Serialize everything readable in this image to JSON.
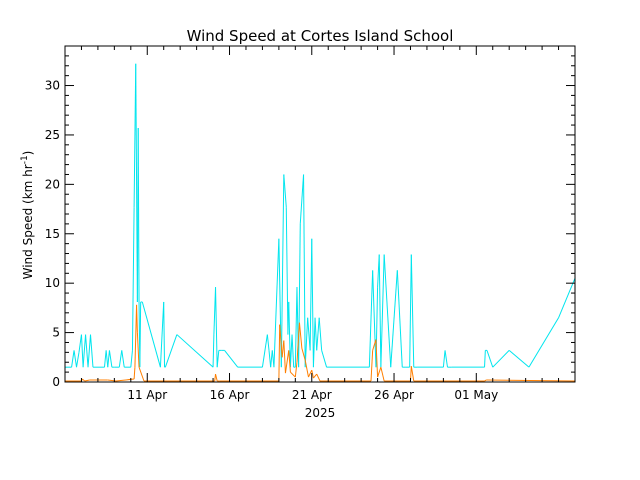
{
  "chart_data": {
    "type": "line",
    "title": "Wind Speed at Cortes Island School",
    "ylabel_main": "Wind Speed (km hr",
    "ylabel_sup": "-1",
    "ylabel_close": ")",
    "year_label": "2025",
    "xlim": [
      0,
      31
    ],
    "ylim": [
      0,
      34
    ],
    "yticks": [
      0,
      5,
      10,
      15,
      20,
      25,
      30
    ],
    "xticks": [
      {
        "x": 5,
        "label": "11 Apr"
      },
      {
        "x": 10,
        "label": "16 Apr"
      },
      {
        "x": 15,
        "label": "21 Apr"
      },
      {
        "x": 20,
        "label": "26 Apr"
      },
      {
        "x": 25,
        "label": "01 May"
      }
    ],
    "colors": {
      "max": "#00e5ee",
      "avg": "#ff7f00",
      "axis": "#000000"
    },
    "series": [
      {
        "key": "max",
        "x": [
          0,
          0.4,
          0.55,
          0.7,
          0.85,
          1.0,
          1.1,
          1.25,
          1.4,
          1.55,
          1.7,
          2.4,
          2.5,
          2.6,
          2.7,
          2.85,
          3.0,
          3.1,
          3.3,
          3.45,
          3.6,
          3.8,
          4.0,
          4.1,
          4.2,
          4.3,
          4.4,
          4.45,
          4.5,
          4.55,
          4.6,
          4.7,
          5.8,
          6.0,
          6.05,
          6.1,
          6.8,
          9.0,
          9.05,
          9.15,
          9.25,
          9.35,
          9.5,
          9.7,
          10.5,
          12.0,
          12.3,
          12.4,
          12.5,
          12.6,
          12.7,
          13.0,
          13.15,
          13.3,
          13.45,
          13.55,
          13.6,
          13.7,
          13.8,
          13.9,
          14.0,
          14.1,
          14.2,
          14.3,
          14.5,
          14.6,
          14.75,
          14.9,
          15.0,
          15.1,
          15.2,
          15.3,
          15.45,
          15.6,
          15.9,
          18.5,
          18.7,
          18.9,
          19.0,
          19.1,
          19.2,
          19.4,
          19.8,
          20.2,
          20.5,
          20.7,
          20.95,
          21.05,
          21.2,
          21.4,
          23.0,
          23.1,
          23.25,
          23.5,
          25.5,
          25.55,
          25.65,
          26.0,
          27.0,
          28.2,
          30.0,
          31.0
        ],
        "values": [
          1.5,
          1.5,
          3.2,
          1.5,
          3.0,
          4.8,
          1.5,
          4.8,
          1.5,
          4.8,
          1.5,
          1.5,
          3.2,
          1.5,
          3.2,
          1.5,
          1.5,
          1.5,
          1.5,
          3.2,
          1.5,
          1.5,
          1.5,
          3.2,
          17.7,
          32.2,
          8.1,
          25.7,
          8.1,
          1.5,
          8.1,
          8.1,
          1.5,
          8.1,
          1.5,
          1.5,
          4.8,
          1.5,
          4.8,
          9.6,
          1.5,
          3.2,
          3.2,
          3.2,
          1.5,
          1.5,
          4.8,
          3.2,
          1.5,
          3.2,
          1.5,
          14.5,
          1.5,
          21.0,
          17.7,
          4.8,
          8.1,
          1.5,
          4.8,
          1.5,
          1.5,
          9.6,
          1.5,
          16.0,
          21.0,
          1.5,
          6.5,
          3.2,
          14.5,
          1.5,
          6.5,
          3.2,
          6.5,
          3.2,
          1.5,
          1.5,
          11.3,
          1.5,
          9.6,
          12.9,
          1.5,
          12.9,
          1.5,
          11.3,
          1.5,
          1.5,
          1.5,
          12.9,
          1.5,
          1.5,
          1.5,
          3.2,
          1.5,
          1.5,
          1.5,
          3.2,
          3.2,
          1.5,
          3.2,
          1.5,
          6.5,
          10.5
        ]
      },
      {
        "key": "avg",
        "x": [
          0,
          1.0,
          1.05,
          1.2,
          1.5,
          2.6,
          3.1,
          4.2,
          4.25,
          4.35,
          4.4,
          4.5,
          4.8,
          9.1,
          9.15,
          9.25,
          9.4,
          13.0,
          13.05,
          13.2,
          13.3,
          13.4,
          13.6,
          13.7,
          14.0,
          14.1,
          14.25,
          14.4,
          14.6,
          14.8,
          15.0,
          15.1,
          15.3,
          15.5,
          18.6,
          18.7,
          18.9,
          19.0,
          19.2,
          19.4,
          21.0,
          21.05,
          21.2,
          25.5,
          25.6,
          31.0
        ],
        "values": [
          0.1,
          0.1,
          0.3,
          0.1,
          0.2,
          0.2,
          0.1,
          0.3,
          1.5,
          7.8,
          5.0,
          1.5,
          0.1,
          0.1,
          0.8,
          0.1,
          0.1,
          0.1,
          5.8,
          2.5,
          4.2,
          0.9,
          3.2,
          1.0,
          0.5,
          2.0,
          6.0,
          3.4,
          2.2,
          0.5,
          1.2,
          0.4,
          0.8,
          0.1,
          0.1,
          3.2,
          4.3,
          0.5,
          1.5,
          0.1,
          0.1,
          1.6,
          0.1,
          0.1,
          0.2,
          0.1
        ]
      }
    ]
  }
}
